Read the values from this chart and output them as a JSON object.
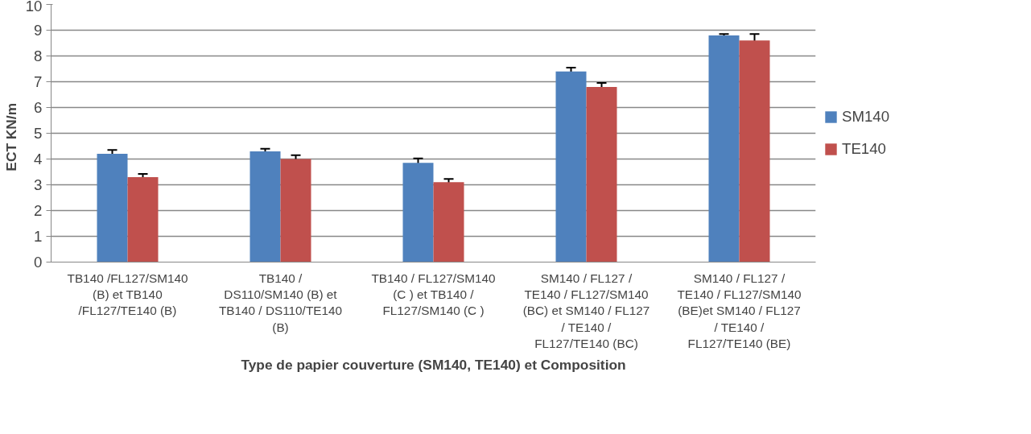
{
  "chart_data": {
    "type": "bar",
    "xlabel": "Type de papier couverture (SM140, TE140) et Composition",
    "ylabel": "ECT   KN/m",
    "categories": [
      "TB140 /FL127/SM140\n(B) et TB140\n/FL127/TE140 (B)",
      "TB140 /\nDS110/SM140 (B) et\nTB140 / DS110/TE140\n(B)",
      "TB140 / FL127/SM140\n(C ) et TB140 /\nFL127/SM140 (C )",
      "SM140 / FL127 /\nTE140 / FL127/SM140\n(BC) et SM140 / FL127\n/ TE140 /\nFL127/TE140 (BC)",
      "SM140 / FL127 /\nTE140 / FL127/SM140\n(BE)et SM140 / FL127\n/ TE140 /\nFL127/TE140 (BE)"
    ],
    "series": [
      {
        "name": "SM140",
        "color": "#4f81bd",
        "values": [
          4.2,
          4.3,
          3.85,
          7.4,
          8.8
        ],
        "errors": [
          0.15,
          0.1,
          0.17,
          0.15,
          0.05
        ]
      },
      {
        "name": "TE140",
        "color": "#c0504d",
        "values": [
          3.3,
          4.0,
          3.1,
          6.8,
          8.6
        ],
        "errors": [
          0.12,
          0.15,
          0.13,
          0.15,
          0.25
        ]
      }
    ],
    "ylim": [
      0,
      10
    ],
    "yticks": [
      0,
      1,
      2,
      3,
      4,
      5,
      6,
      7,
      8,
      9,
      10
    ],
    "grid": "y",
    "legend": "right"
  }
}
